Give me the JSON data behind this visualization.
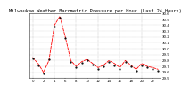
{
  "title": "Milwaukee Weather Barometric Pressure per Hour (Last 24 Hours)",
  "title_fontsize": 3.8,
  "background_color": "#ffffff",
  "plot_bg_color": "#ffffff",
  "line_color": "#ff0000",
  "dot_color": "#000000",
  "grid_color": "#999999",
  "hours": [
    0,
    1,
    2,
    3,
    4,
    5,
    6,
    7,
    8,
    9,
    10,
    11,
    12,
    13,
    14,
    15,
    16,
    17,
    18,
    19,
    20,
    21,
    22,
    23
  ],
  "pressure_line": [
    29.85,
    29.75,
    29.6,
    29.8,
    30.4,
    30.55,
    30.2,
    29.8,
    29.7,
    29.78,
    29.82,
    29.75,
    29.68,
    29.72,
    29.8,
    29.75,
    29.68,
    29.8,
    29.72,
    29.65,
    29.75,
    29.7,
    29.68,
    29.65
  ],
  "pressure_dots": [
    29.83,
    29.72,
    29.58,
    29.82,
    30.38,
    30.52,
    30.18,
    29.78,
    29.68,
    29.76,
    29.8,
    29.73,
    29.65,
    29.7,
    29.78,
    29.72,
    29.65,
    29.78,
    29.7,
    29.62,
    29.72,
    29.68,
    29.65,
    29.62
  ],
  "ylim_min": 29.5,
  "ylim_max": 30.6,
  "tick_fontsize": 2.8,
  "ytick_values": [
    29.5,
    29.6,
    29.7,
    29.8,
    29.9,
    30.0,
    30.1,
    30.2,
    30.3,
    30.4,
    30.5,
    30.6
  ],
  "ytick_labels": [
    "29.5",
    "29.6",
    "29.7",
    "29.8",
    "29.9",
    "30.0",
    "30.1",
    "30.2",
    "30.3",
    "30.4",
    "30.5",
    "30.6"
  ],
  "xtick_hours": [
    0,
    2,
    4,
    6,
    8,
    10,
    12,
    14,
    16,
    18,
    20,
    22
  ],
  "vgrid_positions": [
    0,
    4,
    8,
    12,
    16,
    20,
    24
  ]
}
